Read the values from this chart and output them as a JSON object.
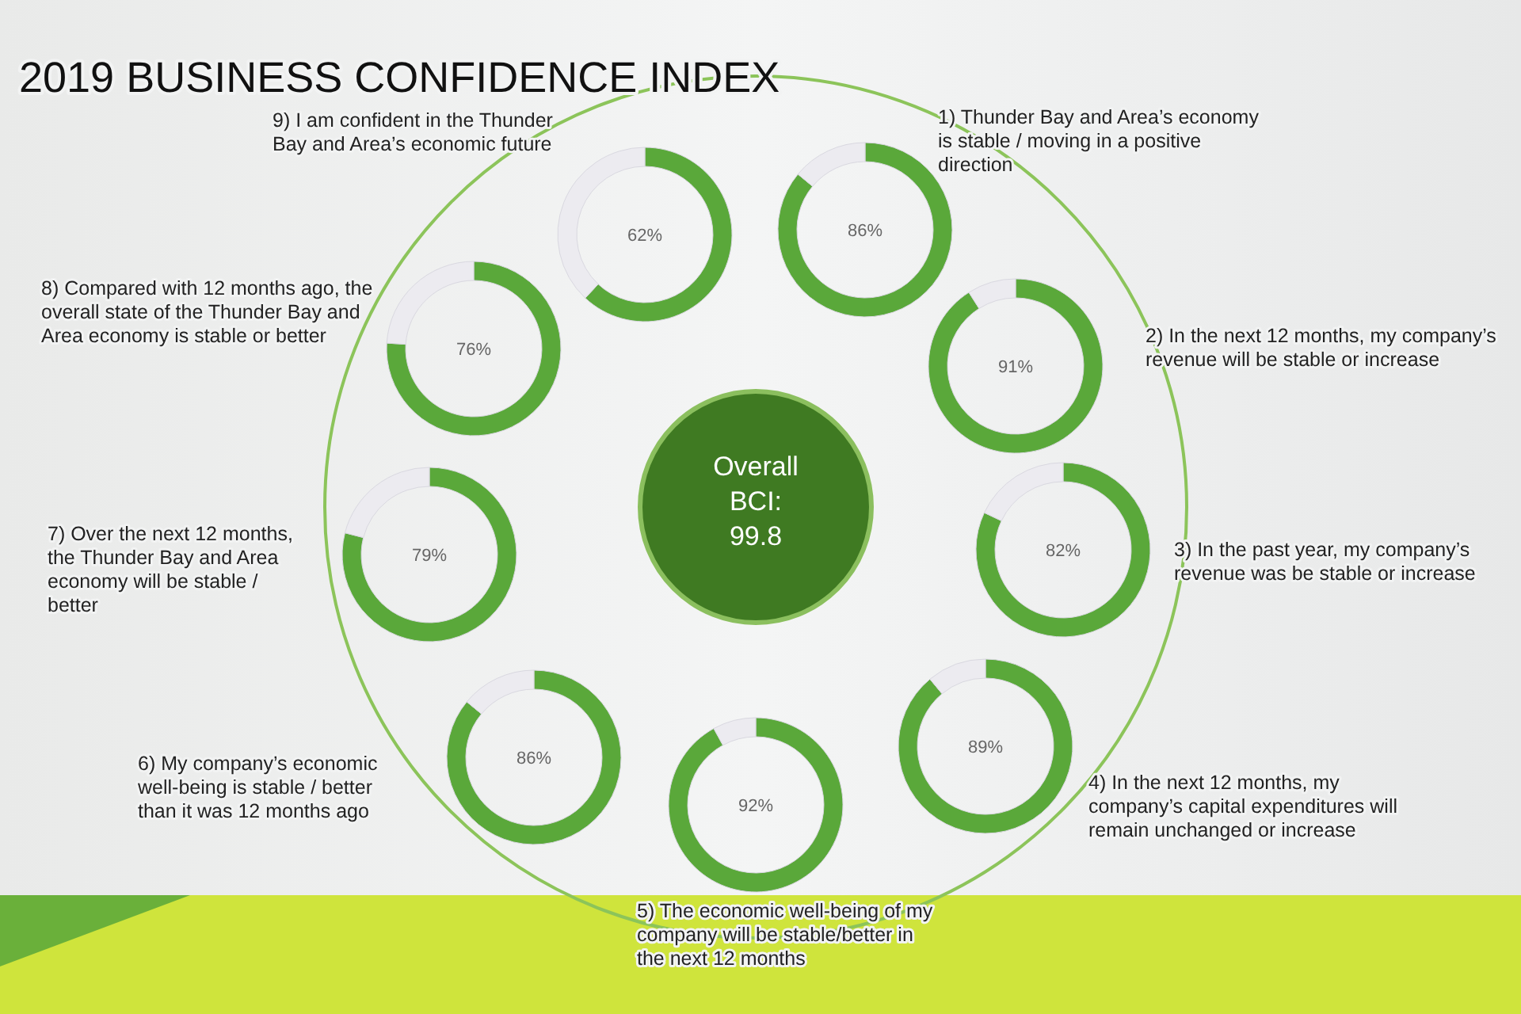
{
  "chart_data": [
    {
      "type": "other",
      "title": "2019 BUSINESS CONFIDENCE INDEX",
      "annotations": [
        "Overall BCI: 99.8"
      ]
    },
    {
      "type": "donut",
      "title": "1) Thunder Bay and Area’s economy is stable / moving in a positive direction",
      "categories": [
        null,
        null
      ],
      "values": [
        86,
        14
      ],
      "colors": [
        "#5aa83a",
        "#ecebf0"
      ],
      "value_labels": [
        "86%",
        null
      ]
    },
    {
      "type": "donut",
      "title": "2) In the next 12 months, my company’s revenue will be stable or increase",
      "categories": [
        null,
        null
      ],
      "values": [
        91,
        9
      ],
      "colors": [
        "#5aa83a",
        "#ecebf0"
      ],
      "value_labels": [
        "91%",
        null
      ]
    },
    {
      "type": "donut",
      "title": "3) In the past year, my company’s revenue was be stable or increase",
      "categories": [
        null,
        null
      ],
      "values": [
        82,
        18
      ],
      "colors": [
        "#5aa83a",
        "#ecebf0"
      ],
      "value_labels": [
        "82%",
        null
      ]
    },
    {
      "type": "donut",
      "title": "4) In the next 12 months, my company’s capital expenditures will remain unchanged or increase",
      "categories": [
        null,
        null
      ],
      "values": [
        89,
        11
      ],
      "colors": [
        "#5aa83a",
        "#ecebf0"
      ],
      "value_labels": [
        "89%",
        null
      ]
    },
    {
      "type": "donut",
      "title": "5) The economic well-being of my company will be stable/better in the next 12 months",
      "categories": [
        null,
        null
      ],
      "values": [
        92,
        8
      ],
      "colors": [
        "#5aa83a",
        "#ecebf0"
      ],
      "value_labels": [
        "92%",
        null
      ]
    },
    {
      "type": "donut",
      "title": "6) My company’s economic well-being is stable / better than it was 12 months ago",
      "categories": [
        null,
        null
      ],
      "values": [
        86,
        14
      ],
      "colors": [
        "#5aa83a",
        "#ecebf0"
      ],
      "value_labels": [
        "86%",
        null
      ]
    },
    {
      "type": "donut",
      "title": "7) Over the next 12 months, the Thunder Bay and Area economy will be stable / better",
      "categories": [
        null,
        null
      ],
      "values": [
        79,
        21
      ],
      "colors": [
        "#5aa83a",
        "#ecebf0"
      ],
      "value_labels": [
        "79%",
        null
      ]
    },
    {
      "type": "donut",
      "title": "8) Compared with 12 months ago, the overall state of the Thunder Bay and Area economy is stable or better",
      "categories": [
        null,
        null
      ],
      "values": [
        76,
        24
      ],
      "colors": [
        "#5aa83a",
        "#ecebf0"
      ],
      "value_labels": [
        "76%",
        null
      ]
    },
    {
      "type": "donut",
      "title": "9) I am confident in the Thunder Bay and Area’s economic future",
      "categories": [
        null,
        null
      ],
      "values": [
        62,
        38
      ],
      "colors": [
        "#5aa83a",
        "#ecebf0"
      ],
      "value_labels": [
        "62%",
        null
      ]
    }
  ]
}
